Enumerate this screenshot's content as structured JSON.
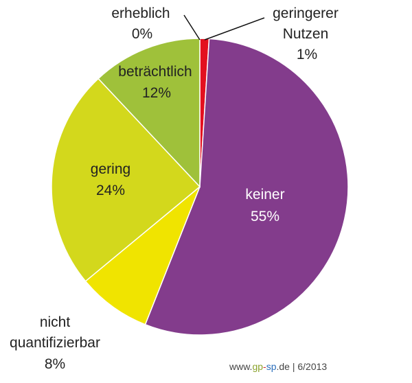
{
  "chart_data": {
    "type": "pie",
    "categories": [
      "geringerer Nutzen",
      "keiner",
      "nicht quantifizierbar",
      "gering",
      "beträchtlich",
      "erheblich"
    ],
    "values": [
      1,
      55,
      8,
      24,
      12,
      0
    ],
    "percent_labels": [
      "1%",
      "55%",
      "8%",
      "24%",
      "12%",
      "0%"
    ],
    "colors": [
      "#e3101f",
      "#833c8c",
      "#f0e400",
      "#d3d81c",
      "#9fc13a",
      "#5b8f2a"
    ],
    "start": "12 o'clock",
    "direction": "clockwise"
  },
  "labels": {
    "erheblich": {
      "name": "erheblich",
      "pct": "0%"
    },
    "geringerer": {
      "line1": "geringerer",
      "line2": "Nutzen",
      "pct": "1%"
    },
    "betraechtlich": {
      "name": "beträchtlich",
      "pct": "12%"
    },
    "gering": {
      "name": "gering",
      "pct": "24%"
    },
    "keiner": {
      "name": "keiner",
      "pct": "55%"
    },
    "nicht": {
      "line1": "nicht",
      "line2": "quantifizierbar",
      "pct": "8%"
    }
  },
  "source": {
    "prefix": "www.",
    "gp": "gp",
    "dash": "-",
    "sp": "sp",
    "suffix": ".de | 6/2013"
  }
}
